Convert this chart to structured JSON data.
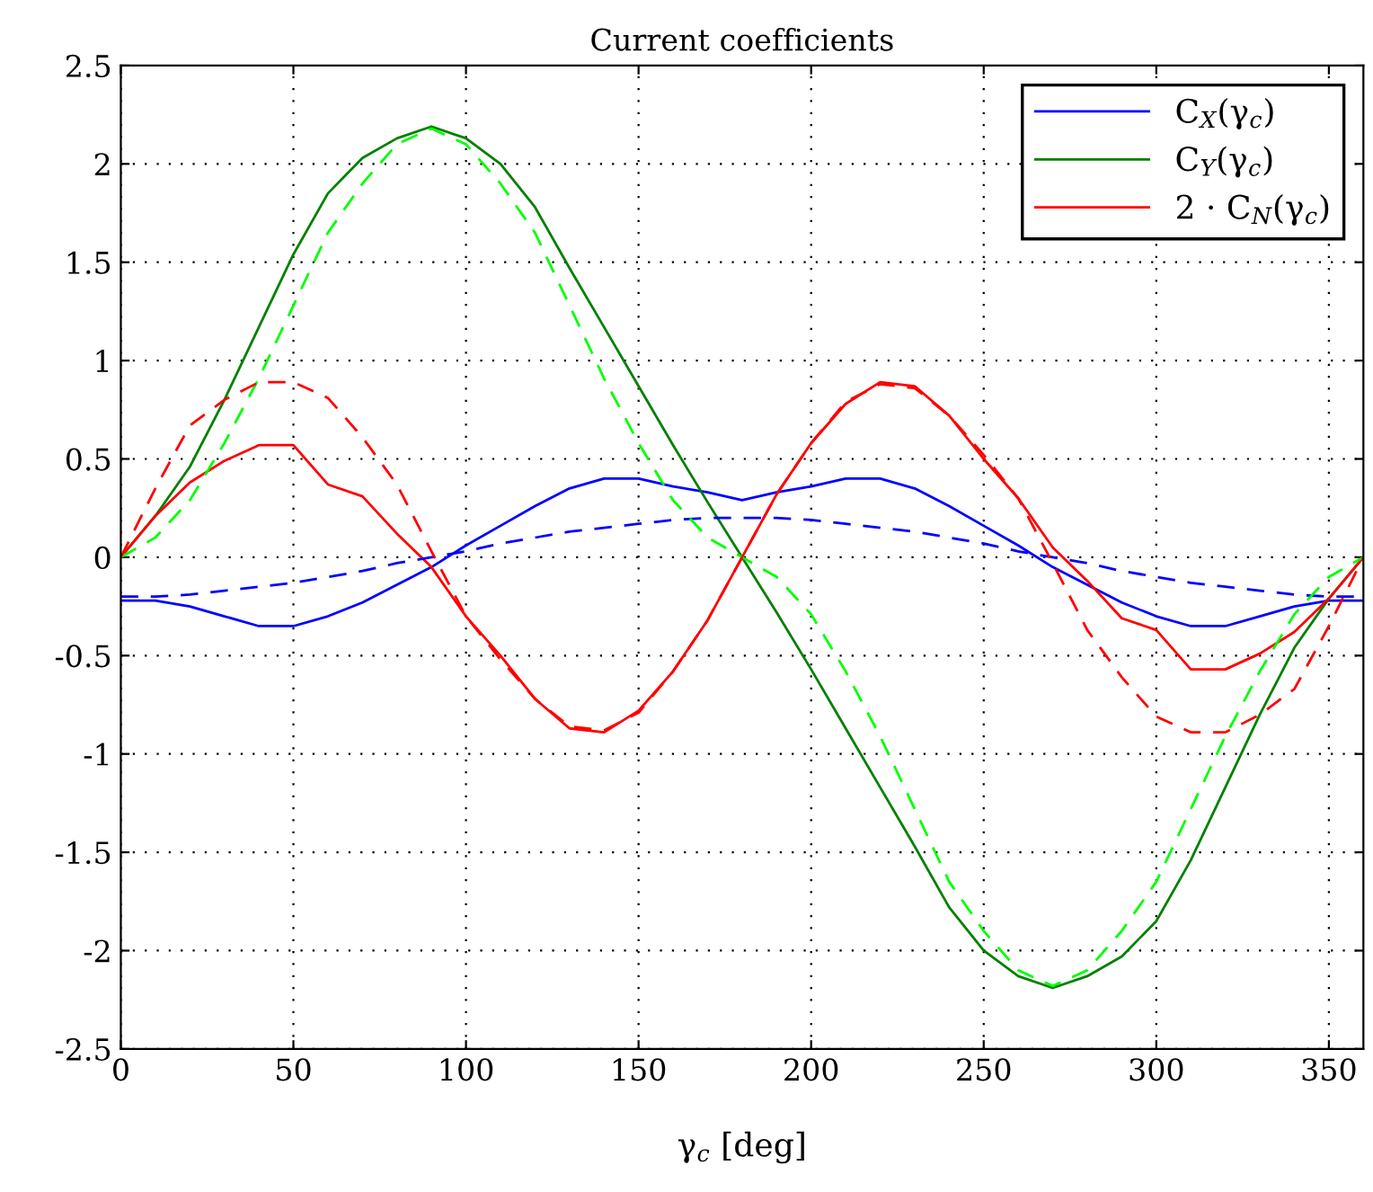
{
  "chart_data": {
    "type": "line",
    "title": "Current coefficients",
    "xlabel": "γ$_{c}$ [deg]",
    "x": [
      0,
      10,
      20,
      30,
      40,
      50,
      60,
      70,
      80,
      90,
      100,
      110,
      120,
      130,
      140,
      150,
      160,
      170,
      180,
      190,
      200,
      210,
      220,
      230,
      240,
      250,
      260,
      270,
      280,
      290,
      300,
      310,
      320,
      330,
      340,
      350,
      360
    ],
    "series": [
      {
        "name": "C$_{X}$(γ$_{c}$)",
        "color": "#0000ff",
        "line_style": "solid",
        "values": [
          -0.22,
          -0.22,
          -0.25,
          -0.3,
          -0.35,
          -0.35,
          -0.3,
          -0.23,
          -0.14,
          -0.05,
          0.06,
          0.16,
          0.26,
          0.35,
          0.4,
          0.4,
          0.36,
          0.33,
          0.29,
          0.33,
          0.36,
          0.4,
          0.4,
          0.35,
          0.26,
          0.16,
          0.06,
          -0.05,
          -0.14,
          -0.23,
          -0.3,
          -0.35,
          -0.35,
          -0.3,
          -0.25,
          -0.22,
          -0.22
        ]
      },
      {
        "name": "C$_{Y}$(γ$_{c}$)",
        "color": "#008000",
        "line_style": "solid",
        "values": [
          0,
          0.21,
          0.46,
          0.8,
          1.17,
          1.54,
          1.85,
          2.03,
          2.13,
          2.19,
          2.13,
          2.0,
          1.78,
          1.47,
          1.17,
          0.87,
          0.57,
          0.28,
          0,
          -0.28,
          -0.57,
          -0.87,
          -1.17,
          -1.47,
          -1.78,
          -2.0,
          -2.13,
          -2.19,
          -2.13,
          -2.03,
          -1.85,
          -1.54,
          -1.17,
          -0.8,
          -0.46,
          -0.21,
          0
        ]
      },
      {
        "name": "2 · C$_{N}$(γ$_{c}$)",
        "color": "#ff0000",
        "line_style": "solid",
        "values": [
          0,
          0.21,
          0.38,
          0.49,
          0.57,
          0.57,
          0.37,
          0.31,
          0.12,
          -0.05,
          -0.3,
          -0.5,
          -0.72,
          -0.87,
          -0.89,
          -0.78,
          -0.58,
          -0.32,
          0,
          0.32,
          0.58,
          0.78,
          0.89,
          0.87,
          0.72,
          0.5,
          0.3,
          0.05,
          -0.12,
          -0.31,
          -0.37,
          -0.57,
          -0.57,
          -0.49,
          -0.38,
          -0.21,
          0
        ]
      },
      {
        "color": "#0000ff",
        "line_style": "dashed",
        "values": [
          -0.2,
          -0.2,
          -0.19,
          -0.17,
          -0.15,
          -0.13,
          -0.1,
          -0.07,
          -0.03,
          0,
          0.03,
          0.07,
          0.1,
          0.13,
          0.15,
          0.17,
          0.19,
          0.2,
          0.2,
          0.2,
          0.19,
          0.17,
          0.15,
          0.13,
          0.1,
          0.07,
          0.03,
          0,
          -0.03,
          -0.07,
          -0.1,
          -0.13,
          -0.15,
          -0.17,
          -0.19,
          -0.2,
          -0.2
        ]
      },
      {
        "color": "#00ff00",
        "line_style": "dashed",
        "values": [
          0,
          0.1,
          0.29,
          0.58,
          0.91,
          1.28,
          1.65,
          1.9,
          2.1,
          2.18,
          2.1,
          1.9,
          1.65,
          1.28,
          0.91,
          0.58,
          0.29,
          0.1,
          0,
          -0.1,
          -0.29,
          -0.58,
          -0.91,
          -1.28,
          -1.65,
          -1.9,
          -2.1,
          -2.18,
          -2.1,
          -1.9,
          -1.65,
          -1.28,
          -0.91,
          -0.58,
          -0.29,
          -0.1,
          0
        ]
      },
      {
        "color": "#ff0000",
        "line_style": "dashed",
        "values": [
          0,
          0.35,
          0.67,
          0.8,
          0.89,
          0.89,
          0.81,
          0.61,
          0.37,
          0.03,
          -0.3,
          -0.52,
          -0.72,
          -0.86,
          -0.88,
          -0.79,
          -0.58,
          -0.32,
          0,
          0.32,
          0.58,
          0.79,
          0.88,
          0.86,
          0.72,
          0.52,
          0.3,
          -0.03,
          -0.37,
          -0.61,
          -0.81,
          -0.89,
          -0.89,
          -0.8,
          -0.67,
          -0.35,
          0
        ]
      }
    ],
    "xlim": [
      0,
      360
    ],
    "xticks": [
      0,
      50,
      100,
      150,
      200,
      250,
      300,
      350
    ],
    "ylim": [
      -2.5,
      2.5
    ],
    "yticks": [
      -2.5,
      -2,
      -1.5,
      -1,
      -0.5,
      0,
      0.5,
      1,
      1.5,
      2,
      2.5
    ],
    "grid": true,
    "legend": "top right"
  }
}
